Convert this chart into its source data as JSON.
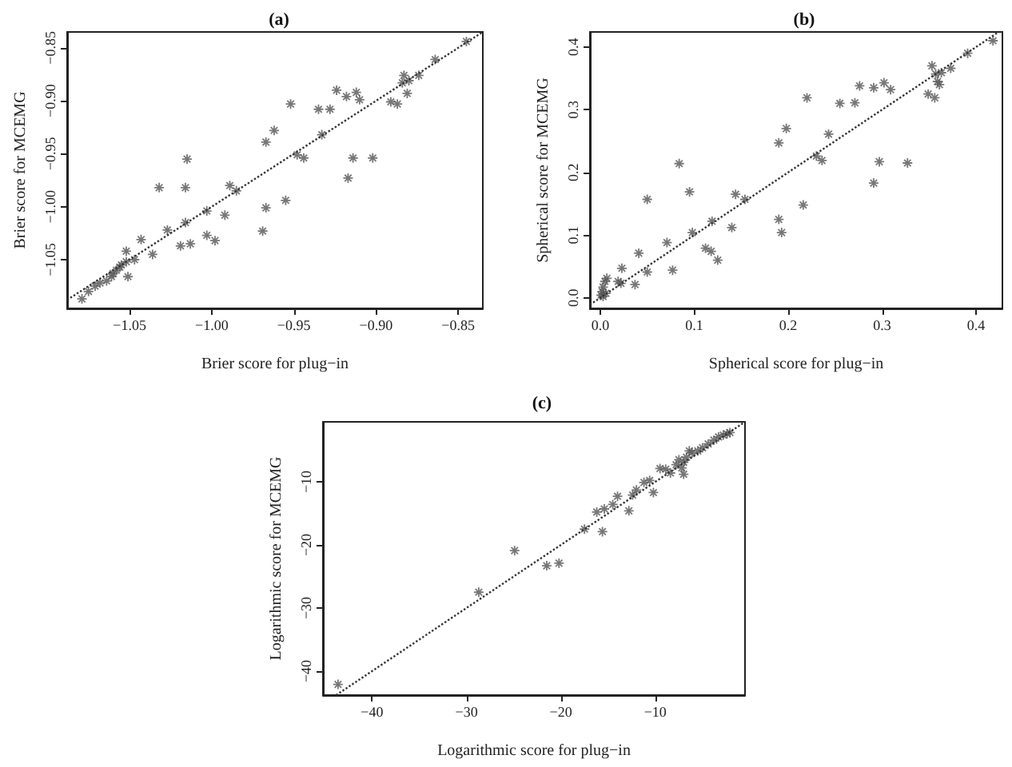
{
  "chart_data": [
    {
      "type": "scatter",
      "title": "(a)",
      "xlabel": "Brier score for plug−in",
      "ylabel": "Brier score for MCEMG",
      "marker": "cross",
      "xlim": [
        -1.088,
        -0.835
      ],
      "ylim": [
        -1.096,
        -0.835
      ],
      "xticks": [
        {
          "value": -1.05,
          "label": "−1.05"
        },
        {
          "value": -1.0,
          "label": "−1.00"
        },
        {
          "value": -0.95,
          "label": "−0.95"
        },
        {
          "value": -0.9,
          "label": "−0.90"
        },
        {
          "value": -0.85,
          "label": "−0.85"
        }
      ],
      "yticks": [
        {
          "value": -1.05,
          "label": "−1.05"
        },
        {
          "value": -1.0,
          "label": "−1.00"
        },
        {
          "value": -0.95,
          "label": "−0.95"
        },
        {
          "value": -0.9,
          "label": "−0.90"
        },
        {
          "value": -0.85,
          "label": "−0.85"
        }
      ],
      "series": [
        {
          "color": "#555555",
          "x": [
            -1.079,
            -1.075,
            -1.071,
            -1.068,
            -1.064,
            -1.061,
            -1.06,
            -1.058,
            -1.056,
            -1.055,
            -1.052,
            -1.051,
            -1.052,
            -1.047,
            -1.043,
            -1.036,
            -1.032,
            -1.027,
            -1.019,
            -1.016,
            -1.015,
            -1.016,
            -1.013,
            -1.003,
            -1.003,
            -0.998,
            -0.992,
            -0.989,
            -0.985,
            -0.969,
            -0.967,
            -0.967,
            -0.962,
            -0.955,
            -0.952,
            -0.948,
            -0.944,
            -0.933,
            -0.935,
            -0.928,
            -0.924,
            -0.917,
            -0.918,
            -0.914,
            -0.912,
            -0.91,
            -0.902,
            -0.891,
            -0.887,
            -0.884,
            -0.883,
            -0.881,
            -0.88,
            -0.874,
            -0.864,
            -0.845
          ],
          "values": [
            -1.087,
            -1.08,
            -1.075,
            -1.072,
            -1.07,
            -1.066,
            -1.063,
            -1.06,
            -1.057,
            -1.055,
            -1.052,
            -1.066,
            -1.042,
            -1.05,
            -1.031,
            -1.045,
            -0.982,
            -1.022,
            -1.037,
            -0.982,
            -0.955,
            -1.015,
            -1.035,
            -1.027,
            -1.004,
            -1.032,
            -1.008,
            -0.98,
            -0.985,
            -1.023,
            -1.001,
            -0.939,
            -0.928,
            -0.994,
            -0.903,
            -0.951,
            -0.954,
            -0.932,
            -0.908,
            -0.908,
            -0.89,
            -0.973,
            -0.896,
            -0.954,
            -0.892,
            -0.899,
            -0.954,
            -0.901,
            -0.903,
            -0.883,
            -0.876,
            -0.893,
            -0.881,
            -0.876,
            -0.861,
            -0.844
          ]
        },
        {
          "type": "line",
          "marker": "none",
          "color": "#333333",
          "line_style": "dotted",
          "x": [
            -1.088,
            -0.835
          ],
          "values": [
            -1.088,
            -0.835
          ]
        }
      ]
    },
    {
      "type": "scatter",
      "title": "(b)",
      "xlabel": "Spherical score for plug−in",
      "ylabel": "Spherical score for MCEMG",
      "marker": "cross",
      "xlim": [
        -0.011,
        0.428
      ],
      "ylim": [
        -0.017,
        0.424
      ],
      "xticks": [
        {
          "value": 0,
          "label": "0.0"
        },
        0.1,
        0.2,
        0.3,
        0.4
      ],
      "yticks": [
        {
          "value": 0,
          "label": "0.0"
        },
        0.1,
        0.2,
        0.3,
        0.4
      ],
      "series": [
        {
          "color": "#555555",
          "x": [
            0.001,
            0.002,
            0.003,
            0.005,
            0.007,
            0.003,
            0.006,
            0.019,
            0.023,
            0.022,
            0.037,
            0.041,
            0.05,
            0.05,
            0.071,
            0.077,
            0.084,
            0.095,
            0.098,
            0.112,
            0.118,
            0.119,
            0.125,
            0.14,
            0.144,
            0.154,
            0.19,
            0.193,
            0.19,
            0.198,
            0.216,
            0.22,
            0.23,
            0.236,
            0.243,
            0.255,
            0.271,
            0.276,
            0.291,
            0.291,
            0.297,
            0.302,
            0.309,
            0.327,
            0.349,
            0.353,
            0.356,
            0.357,
            0.359,
            0.361,
            0.363,
            0.373,
            0.391,
            0.418
          ],
          "values": [
            0.004,
            0.01,
            0.017,
            0.026,
            0.031,
            0.002,
            0.007,
            0.026,
            0.047,
            0.023,
            0.021,
            0.071,
            0.041,
            0.157,
            0.088,
            0.044,
            0.214,
            0.169,
            0.104,
            0.079,
            0.074,
            0.122,
            0.06,
            0.112,
            0.165,
            0.157,
            0.125,
            0.104,
            0.247,
            0.27,
            0.148,
            0.319,
            0.226,
            0.219,
            0.261,
            0.31,
            0.311,
            0.338,
            0.335,
            0.183,
            0.217,
            0.343,
            0.332,
            0.215,
            0.325,
            0.37,
            0.319,
            0.357,
            0.345,
            0.34,
            0.359,
            0.366,
            0.39,
            0.41
          ]
        },
        {
          "type": "line",
          "marker": "none",
          "color": "#333333",
          "line_style": "dotted",
          "x": [
            -0.011,
            0.424
          ],
          "values": [
            -0.011,
            0.424
          ]
        }
      ]
    },
    {
      "type": "scatter",
      "title": "(c)",
      "xlabel": "Logarithmic score for plug−in",
      "ylabel": "Logarithmic score for MCEMG",
      "marker": "cross",
      "xlim": [
        -45.2,
        -0.5
      ],
      "ylim": [
        -43.8,
        -0.5
      ],
      "xticks": [
        {
          "value": -40,
          "label": "−40"
        },
        {
          "value": -30,
          "label": "−30"
        },
        {
          "value": -20,
          "label": "−20"
        },
        {
          "value": -10,
          "label": "−10"
        }
      ],
      "yticks": [
        {
          "value": -40,
          "label": "−40"
        },
        {
          "value": -30,
          "label": "−30"
        },
        {
          "value": -20,
          "label": "−20"
        },
        {
          "value": -10,
          "label": "−10"
        }
      ],
      "series": [
        {
          "color": "#555555",
          "x": [
            -43.6,
            -28.7,
            -24.9,
            -21.5,
            -20.2,
            -17.5,
            -15.6,
            -16.2,
            -15.4,
            -14.5,
            -14.0,
            -12.8,
            -12.4,
            -12.0,
            -11.2,
            -10.6,
            -10.2,
            -9.5,
            -8.9,
            -8.4,
            -7.8,
            -7.2,
            -7.0,
            -7.0,
            -6.7,
            -6.4,
            -5.5,
            -5.0,
            -4.4,
            -3.8,
            -3.3,
            -2.8,
            -2.4,
            -2.1,
            -6.1,
            -7.5
          ],
          "values": [
            -42.1,
            -27.5,
            -20.9,
            -23.3,
            -22.9,
            -17.5,
            -17.9,
            -14.8,
            -14.3,
            -13.6,
            -12.3,
            -14.6,
            -12.1,
            -11.3,
            -10.1,
            -9.8,
            -11.7,
            -7.9,
            -8.0,
            -8.6,
            -7.3,
            -7.8,
            -6.9,
            -8.8,
            -6.1,
            -5.1,
            -5.1,
            -4.6,
            -4.0,
            -3.4,
            -2.9,
            -2.6,
            -2.4,
            -2.2,
            -5.4,
            -6.5
          ]
        },
        {
          "type": "line",
          "marker": "none",
          "color": "#333333",
          "line_style": "dotted",
          "x": [
            -43.8,
            -0.5
          ],
          "values": [
            -43.8,
            -0.5
          ]
        }
      ]
    }
  ]
}
